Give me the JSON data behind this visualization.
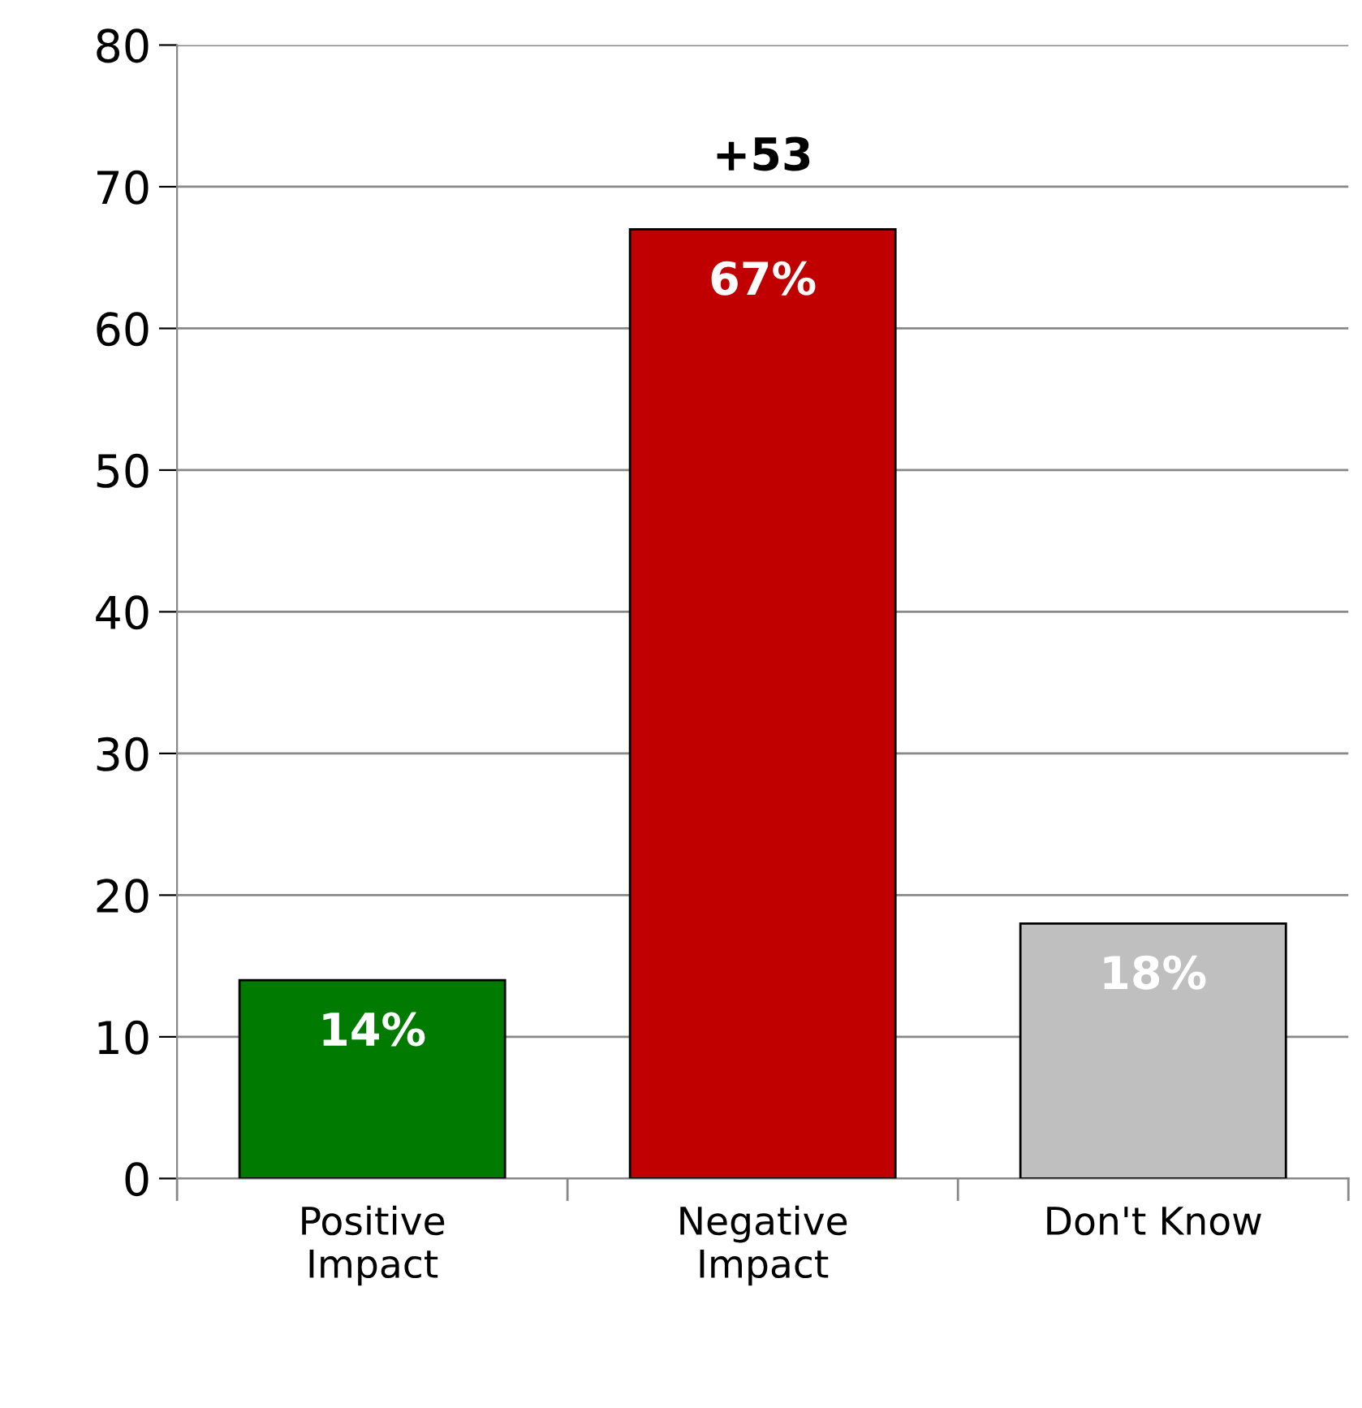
{
  "chart_data": {
    "type": "bar",
    "categories": [
      "Positive\nImpact",
      "Negative\nImpact",
      "Don't Know"
    ],
    "values": [
      14,
      67,
      18
    ],
    "colors": [
      "#007a00",
      "#c00000",
      "#bfbfbf"
    ],
    "value_labels": [
      "14%",
      "67%",
      "18%"
    ],
    "annotations": [
      {
        "text": "+53",
        "x": "Negative\nImpact",
        "y": 67
      }
    ],
    "ylim": [
      0,
      80
    ],
    "yticks": [
      0,
      10,
      20,
      30,
      40,
      50,
      60,
      70,
      80
    ],
    "grid": "y",
    "legend": false
  }
}
